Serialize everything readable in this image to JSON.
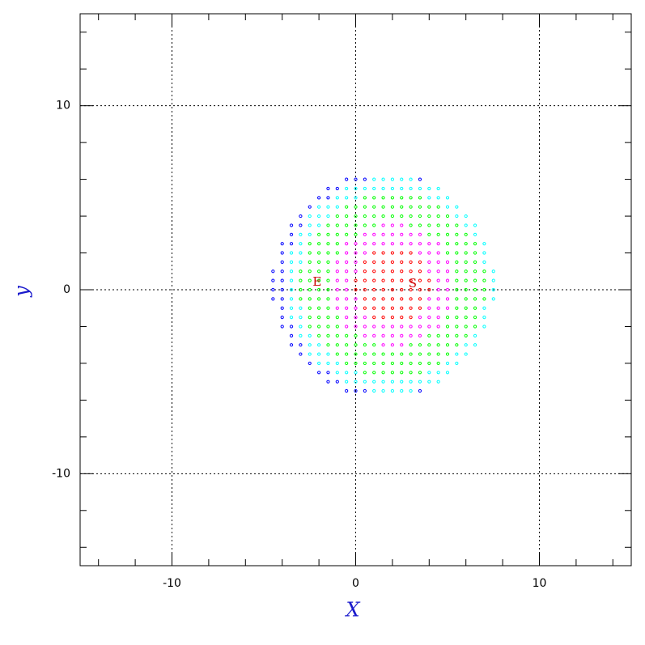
{
  "chart_data": {
    "type": "scatter",
    "x_label": "X",
    "y_label": "y",
    "xlim": [
      -15,
      15
    ],
    "ylim": [
      -15,
      15
    ],
    "xticks": [
      -10,
      0,
      10
    ],
    "yticks": [
      -10,
      0,
      10
    ],
    "xminorticks": [
      -14,
      -12,
      -8,
      -6,
      -4,
      -2,
      2,
      4,
      6,
      8,
      12,
      14
    ],
    "yminorticks": [
      -14,
      -12,
      -8,
      -6,
      -4,
      -2,
      2,
      4,
      6,
      8,
      12,
      14
    ],
    "grid": true,
    "annotations": [
      {
        "text": "E",
        "x": -2.1,
        "y": 0.4
      },
      {
        "text": "S",
        "x": 3.1,
        "y": 0.3
      }
    ],
    "series": [
      {
        "color": "#ff0000",
        "x": [
          1,
          1.5,
          2,
          2.5,
          3,
          0.5,
          1,
          1.5,
          2,
          2.5,
          3,
          3.5,
          0.5,
          1,
          1.5,
          2,
          2.5,
          3,
          3.5,
          0,
          0.5,
          1,
          1.5,
          2,
          2.5,
          3,
          3.5,
          4,
          0,
          0.5,
          1,
          1.5,
          2,
          2.5,
          3,
          3.5,
          4,
          0.5,
          1,
          1.5,
          2,
          2.5,
          3,
          3.5,
          0.5,
          1,
          1.5,
          2,
          2.5,
          3,
          3.5,
          1,
          1.5,
          2,
          2.5,
          3
        ],
        "values": [
          2,
          2,
          2,
          2,
          2,
          1.5,
          1.5,
          1.5,
          1.5,
          1.5,
          1.5,
          1.5,
          1,
          1,
          1,
          1,
          1,
          1,
          1,
          0.5,
          0.5,
          0.5,
          0.5,
          0.5,
          0.5,
          0.5,
          0.5,
          0.5,
          0,
          0,
          0,
          0,
          0,
          0,
          0,
          0,
          0,
          -0.5,
          -0.5,
          -0.5,
          -0.5,
          -0.5,
          -0.5,
          -0.5,
          -1,
          -1,
          -1,
          -1,
          -1,
          -1,
          -1,
          -1.5,
          -1.5,
          -1.5,
          -1.5,
          -1.5
        ]
      },
      {
        "color": "#ff00ff",
        "x": [
          1.5,
          2,
          2.5,
          0.5,
          1,
          1.5,
          2,
          2.5,
          3,
          3.5,
          -0.5,
          0,
          0.5,
          1,
          1.5,
          2,
          2.5,
          3,
          3.5,
          4,
          4.5,
          -0.5,
          0,
          0.5,
          3.5,
          4,
          4.5,
          -1,
          -0.5,
          0,
          4,
          4.5,
          5,
          -1,
          -0.5,
          0,
          4,
          4.5,
          5,
          -1,
          -0.5,
          4.5,
          5,
          -1,
          -0.5,
          4.5,
          5,
          -1,
          -0.5,
          0,
          4,
          4.5,
          5,
          -1,
          -0.5,
          0,
          4,
          4.5,
          5,
          -0.5,
          0,
          0.5,
          3.5,
          4,
          4.5,
          -0.5,
          0,
          0.5,
          1,
          1.5,
          2,
          2.5,
          3,
          3.5,
          4,
          4.5,
          0.5,
          1,
          1.5,
          2,
          2.5,
          3,
          3.5,
          1.5,
          2,
          2.5
        ],
        "values": [
          3.5,
          3.5,
          3.5,
          3,
          3,
          3,
          3,
          3,
          3,
          3,
          2.5,
          2.5,
          2.5,
          2.5,
          2.5,
          2.5,
          2.5,
          2.5,
          2.5,
          2.5,
          2.5,
          2,
          2,
          2,
          2,
          2,
          2,
          1.5,
          1.5,
          1.5,
          1.5,
          1.5,
          1.5,
          1,
          1,
          1,
          1,
          1,
          1,
          0.5,
          0.5,
          0.5,
          0.5,
          0,
          0,
          0,
          0,
          -0.5,
          -0.5,
          -0.5,
          -0.5,
          -0.5,
          -0.5,
          -1,
          -1,
          -1,
          -1,
          -1,
          -1,
          -1.5,
          -1.5,
          -1.5,
          -1.5,
          -1.5,
          -1.5,
          -2,
          -2,
          -2,
          -2,
          -2,
          -2,
          -2,
          -2,
          -2,
          -2,
          -2,
          -2.5,
          -2.5,
          -2.5,
          -2.5,
          -2.5,
          -2.5,
          -2.5,
          -3,
          -3,
          -3
        ]
      },
      {
        "color": "#00ff00",
        "x": [
          0.5,
          1,
          1.5,
          2,
          2.5,
          3,
          3.5,
          -0.5,
          0,
          0.5,
          1,
          1.5,
          2,
          2.5,
          3,
          3.5,
          4,
          4.5,
          -1,
          -0.5,
          0,
          0.5,
          1,
          1.5,
          2,
          2.5,
          3,
          3.5,
          4,
          4.5,
          5,
          -1.5,
          -1,
          -0.5,
          0,
          0.5,
          1,
          3,
          3.5,
          4,
          4.5,
          5,
          5.5,
          -2,
          -1.5,
          -1,
          -0.5,
          0,
          4,
          4.5,
          5,
          5.5,
          6,
          -2.5,
          -2,
          -1.5,
          -1,
          5,
          5.5,
          6,
          6.5,
          -2.5,
          -2,
          -1.5,
          -1,
          5,
          5.5,
          6,
          6.5,
          -2.5,
          -2,
          -1.5,
          5.5,
          6,
          6.5,
          -3,
          -2.5,
          -2,
          -1.5,
          5.5,
          6,
          6.5,
          7,
          -3,
          -2.5,
          -2,
          -1.5,
          5.5,
          6,
          6.5,
          7,
          -3,
          -2.5,
          -2,
          -1.5,
          5.5,
          6,
          6.5,
          7,
          -3,
          -2.5,
          -2,
          -1.5,
          5.5,
          6,
          6.5,
          7,
          -2.5,
          -2,
          -1.5,
          5.5,
          6,
          6.5,
          -2.5,
          -2,
          -1.5,
          -1,
          5,
          5.5,
          6,
          6.5,
          -2.5,
          -2,
          -1.5,
          -1,
          5,
          5.5,
          6,
          6.5,
          -2,
          -1.5,
          -1,
          -0.5,
          0,
          4,
          4.5,
          5,
          5.5,
          6,
          -1.5,
          -1,
          -0.5,
          0,
          0.5,
          1,
          3,
          3.5,
          4,
          4.5,
          5,
          5.5,
          -1,
          -0.5,
          0,
          0.5,
          1,
          1.5,
          2,
          2.5,
          3,
          3.5,
          4,
          4.5,
          5,
          -0.5,
          0,
          0.5,
          1,
          1.5,
          2,
          2.5,
          3,
          3.5,
          4,
          4.5,
          0.5,
          1,
          1.5,
          2,
          2.5,
          3,
          3.5
        ],
        "values": [
          5,
          5,
          5,
          5,
          5,
          5,
          5,
          4.5,
          4.5,
          4.5,
          4.5,
          4.5,
          4.5,
          4.5,
          4.5,
          4.5,
          4.5,
          4.5,
          4,
          4,
          4,
          4,
          4,
          4,
          4,
          4,
          4,
          4,
          4,
          4,
          4,
          3.5,
          3.5,
          3.5,
          3.5,
          3.5,
          3.5,
          3.5,
          3.5,
          3.5,
          3.5,
          3.5,
          3.5,
          3,
          3,
          3,
          3,
          3,
          3,
          3,
          3,
          3,
          3,
          2.5,
          2.5,
          2.5,
          2.5,
          2.5,
          2.5,
          2.5,
          2.5,
          2,
          2,
          2,
          2,
          2,
          2,
          2,
          2,
          1.5,
          1.5,
          1.5,
          1.5,
          1.5,
          1.5,
          1,
          1,
          1,
          1,
          1,
          1,
          1,
          1,
          0.5,
          0.5,
          0.5,
          0.5,
          0.5,
          0.5,
          0.5,
          0.5,
          0,
          0,
          0,
          0,
          0,
          0,
          0,
          0,
          -0.5,
          -0.5,
          -0.5,
          -0.5,
          -0.5,
          -0.5,
          -0.5,
          -0.5,
          -1,
          -1,
          -1,
          -1,
          -1,
          -1,
          -1.5,
          -1.5,
          -1.5,
          -1.5,
          -1.5,
          -1.5,
          -1.5,
          -1.5,
          -2,
          -2,
          -2,
          -2,
          -2,
          -2,
          -2,
          -2,
          -2.5,
          -2.5,
          -2.5,
          -2.5,
          -2.5,
          -2.5,
          -2.5,
          -2.5,
          -2.5,
          -2.5,
          -3,
          -3,
          -3,
          -3,
          -3,
          -3,
          -3,
          -3,
          -3,
          -3,
          -3,
          -3,
          -3.5,
          -3.5,
          -3.5,
          -3.5,
          -3.5,
          -3.5,
          -3.5,
          -3.5,
          -3.5,
          -3.5,
          -3.5,
          -3.5,
          -3.5,
          -4,
          -4,
          -4,
          -4,
          -4,
          -4,
          -4,
          -4,
          -4,
          -4,
          -4,
          -4.5,
          -4.5,
          -4.5,
          -4.5,
          -4.5,
          -4.5,
          -4.5
        ]
      },
      {
        "color": "#00ffff",
        "x": [
          1,
          1.5,
          2,
          2.5,
          3,
          -0.5,
          0,
          0.5,
          1,
          1.5,
          2,
          2.5,
          3,
          3.5,
          4,
          4.5,
          -1,
          -0.5,
          0,
          4,
          4.5,
          5,
          -2,
          -1.5,
          -1,
          5,
          5.5,
          -2.5,
          -2,
          -1.5,
          5.5,
          6,
          -2.5,
          -2,
          6,
          6.5,
          -3,
          -2.5,
          6.5,
          -3,
          7,
          -3.5,
          -3,
          7,
          -3.5,
          -3,
          7,
          -3.5,
          7.5,
          -3.5,
          7.5,
          -3.5,
          7.5,
          -3.5,
          7.5,
          -3.5,
          -3,
          7,
          -3.5,
          -3,
          7,
          -3,
          7,
          -3,
          -2.5,
          6.5,
          -2.5,
          -2,
          6,
          6.5,
          -2.5,
          -2,
          -1.5,
          5.5,
          6,
          -2,
          -1.5,
          -1,
          5,
          5.5,
          -1,
          -0.5,
          0,
          4,
          4.5,
          5,
          -0.5,
          0,
          0.5,
          1,
          1.5,
          2,
          2.5,
          3,
          3.5,
          4,
          4.5,
          1,
          1.5,
          2,
          2.5,
          3
        ],
        "values": [
          6,
          6,
          6,
          6,
          6,
          5.5,
          5.5,
          5.5,
          5.5,
          5.5,
          5.5,
          5.5,
          5.5,
          5.5,
          5.5,
          5.5,
          5,
          5,
          5,
          5,
          5,
          5,
          4.5,
          4.5,
          4.5,
          4.5,
          4.5,
          4,
          4,
          4,
          4,
          4,
          3.5,
          3.5,
          3.5,
          3.5,
          3,
          3,
          3,
          2.5,
          2.5,
          2,
          2,
          2,
          1.5,
          1.5,
          1.5,
          1,
          1,
          0.5,
          0.5,
          0,
          0,
          -0.5,
          -0.5,
          -1,
          -1,
          -1,
          -1.5,
          -1.5,
          -1.5,
          -2,
          -2,
          -2.5,
          -2.5,
          -2.5,
          -3,
          -3,
          -3,
          -3,
          -3.5,
          -3.5,
          -3.5,
          -3.5,
          -3.5,
          -4,
          -4,
          -4,
          -4,
          -4,
          -4.5,
          -4.5,
          -4.5,
          -4.5,
          -4.5,
          -4.5,
          -5,
          -5,
          -5,
          -5,
          -5,
          -5,
          -5,
          -5,
          -5,
          -5,
          -5,
          -5.5,
          -5.5,
          -5.5,
          -5.5,
          -5.5
        ]
      },
      {
        "color": "#0000ff",
        "x": [
          -0.5,
          0,
          0.5,
          3.5,
          -1.5,
          -1,
          -2,
          -1.5,
          -2.5,
          -3,
          -3.5,
          -3,
          -3.5,
          -4,
          -3.5,
          -4,
          -4,
          -4.5,
          -4,
          -4.5,
          -4,
          -4.5,
          -4,
          -4.5,
          -4,
          -4,
          -4,
          -4,
          -3.5,
          -3.5,
          -3.5,
          -3,
          -3,
          -2.5,
          -2,
          -1.5,
          -1.5,
          -1,
          -0.5,
          0,
          0.5,
          3.5
        ],
        "values": [
          6,
          6,
          6,
          6,
          5.5,
          5.5,
          5,
          5,
          4.5,
          4,
          3.5,
          3.5,
          3,
          2.5,
          2.5,
          2,
          1.5,
          1,
          1,
          0.5,
          0.5,
          0,
          0,
          -0.5,
          -0.5,
          -1,
          -1.5,
          -2,
          -2,
          -2.5,
          -3,
          -3,
          -3.5,
          -4,
          -4.5,
          -4.5,
          -5,
          -5,
          -5.5,
          -5.5,
          -5.5,
          -5.5
        ]
      }
    ]
  }
}
